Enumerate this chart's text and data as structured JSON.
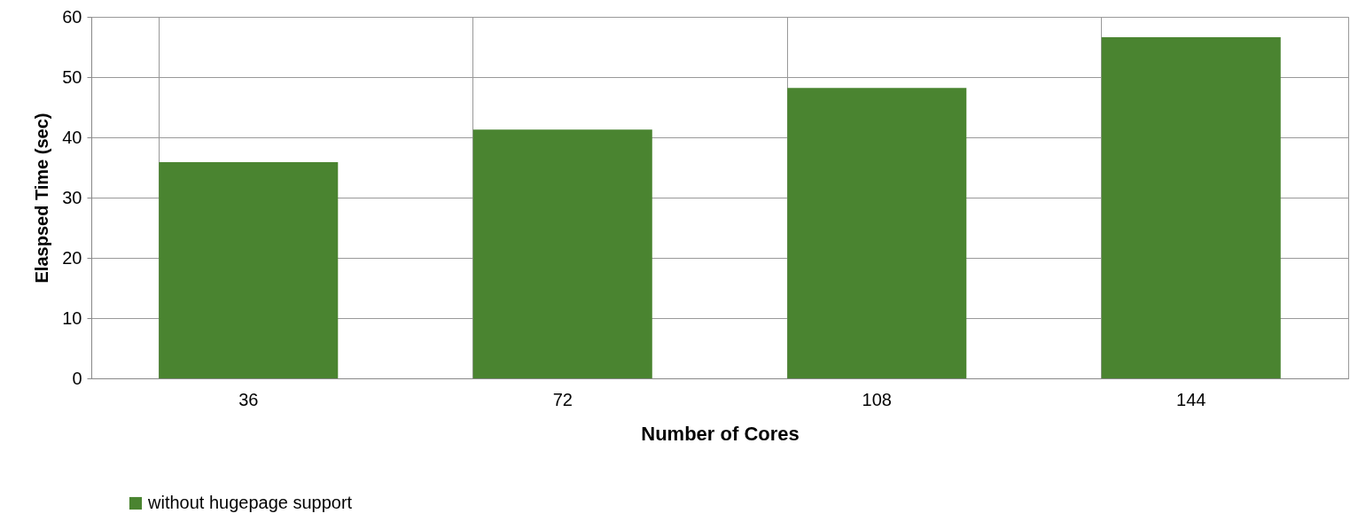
{
  "chart_data": {
    "type": "bar",
    "xlabel": "Number  of Cores",
    "ylabel": "Elaspsed Time (sec)",
    "categories": [
      "36",
      "72",
      "108",
      "144"
    ],
    "series": [
      {
        "name": "without hugepage support",
        "color": "#4a8430",
        "values": [
          35.9,
          41.3,
          48.2,
          56.6
        ]
      }
    ],
    "ylim": [
      0,
      60
    ],
    "yticks": [
      0,
      10,
      20,
      30,
      40,
      50,
      60
    ],
    "grid": true,
    "legend": "bottom"
  }
}
